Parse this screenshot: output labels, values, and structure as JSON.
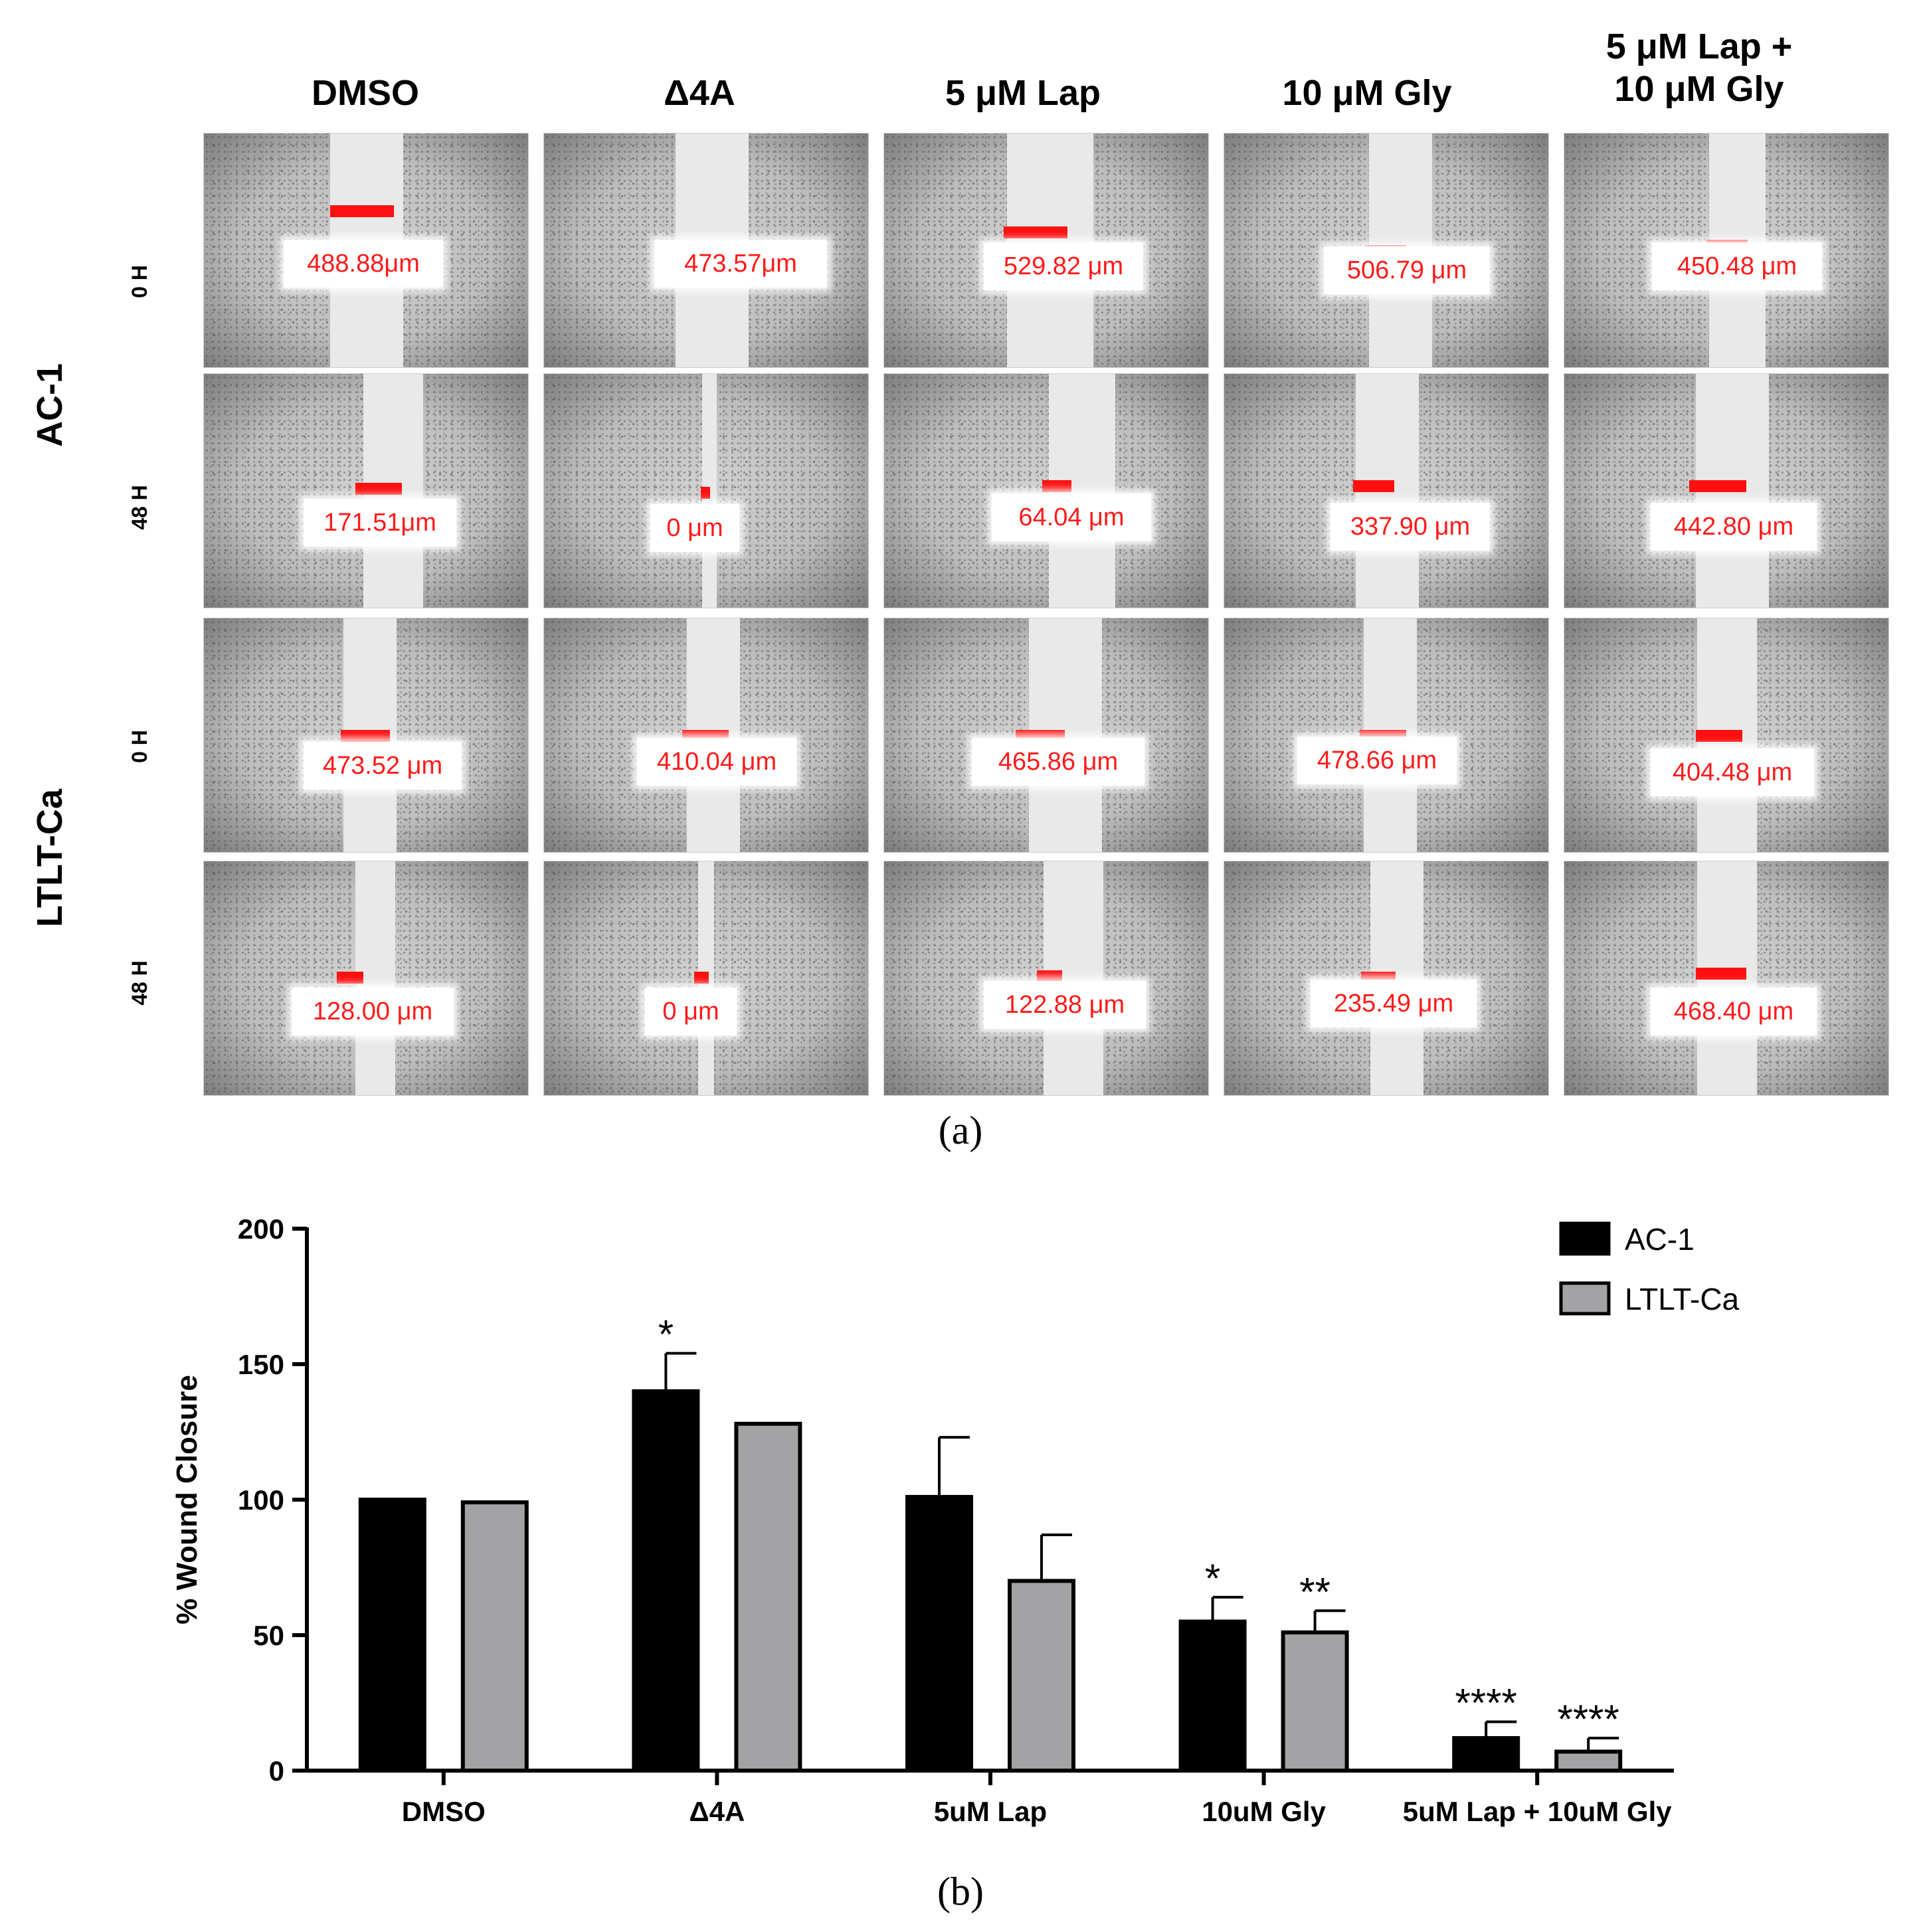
{
  "panel_a": {
    "columns": [
      "DMSO",
      "Δ4A",
      "5 μM Lap",
      "10 μM Gly",
      "5 μM Lap +\n10 μM Gly"
    ],
    "groups": [
      {
        "name": "AC-1",
        "times": [
          "0 H",
          "48 H"
        ]
      },
      {
        "name": "LTLT-Ca",
        "times": [
          "0 H",
          "48 H"
        ]
      }
    ],
    "measurements": [
      [
        "488.88μm",
        "473.57μm",
        "529.82 μm",
        "506.79 μm",
        "450.48 μm"
      ],
      [
        "171.51μm",
        "0 μm",
        "64.04 μm",
        "337.90 μm",
        "442.80 μm"
      ],
      [
        "473.52 μm",
        "410.04 μm",
        "465.86 μm",
        "478.66 μm",
        "404.48 μm"
      ],
      [
        "128.00 μm",
        "0 μm",
        "122.88 μm",
        "235.49 μm",
        "468.40 μm"
      ]
    ],
    "caption": "(a)"
  },
  "panel_b_caption": "(b)",
  "chart_data": {
    "type": "bar",
    "categories": [
      "DMSO",
      "Δ4A",
      "5uM Lap",
      "10uM Gly",
      "5uM Lap + 10uM Gly"
    ],
    "series": [
      {
        "name": "AC-1",
        "color": "#000000",
        "values": [
          100,
          140,
          101,
          55,
          12
        ],
        "errors": [
          0,
          14,
          22,
          9,
          6
        ],
        "annotations": [
          "",
          "*",
          "",
          "*",
          "****"
        ]
      },
      {
        "name": "LTLT-Ca",
        "color": "#a3a3a6",
        "values": [
          99,
          128,
          70,
          51,
          7
        ],
        "errors": [
          0,
          0,
          17,
          8,
          5
        ],
        "annotations": [
          "",
          "",
          "",
          "**",
          "****"
        ]
      }
    ],
    "ylabel": "% Wound Closure",
    "xlabel": "",
    "ylim": [
      0,
      200
    ],
    "yticks": [
      0,
      50,
      100,
      150,
      200
    ],
    "legend": "top-right"
  }
}
